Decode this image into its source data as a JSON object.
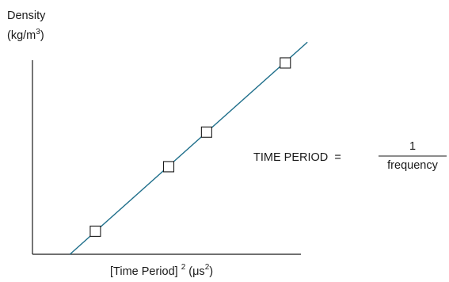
{
  "chart_data": {
    "type": "line",
    "ylabel": {
      "line1": "Density",
      "line2_base": "(kg/m",
      "line2_sup": "3",
      "line2_close": ")"
    },
    "xlabel": {
      "part1": "[Time Period]",
      "sup1": "2",
      "part2": "(μs",
      "sup2": "2",
      "part3": ")"
    },
    "annotation": {
      "lhs": "TIME PERIOD  =",
      "numerator": "1",
      "denominator": "frequency"
    },
    "line": {
      "x_start": 0.09,
      "y_start": 0.0,
      "x_end": 0.66,
      "y_end": 0.92,
      "color": "#1f6f8b"
    },
    "points": [
      {
        "x": 0.151,
        "y": 0.1
      },
      {
        "x": 0.327,
        "y": 0.38
      },
      {
        "x": 0.418,
        "y": 0.53
      },
      {
        "x": 0.607,
        "y": 0.83
      }
    ],
    "xlim": [
      0,
      1
    ],
    "ylim": [
      0,
      1
    ],
    "grid": false,
    "legend": "none"
  }
}
